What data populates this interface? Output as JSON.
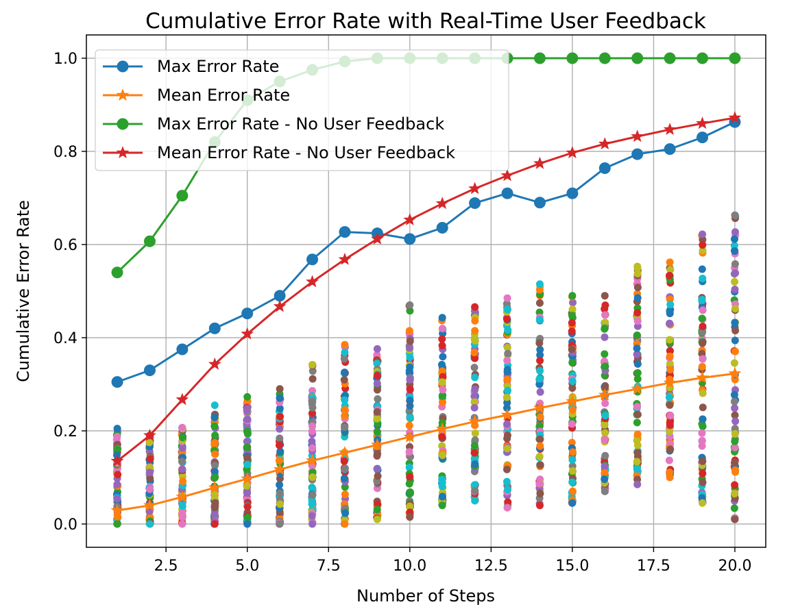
{
  "chart_data": {
    "type": "line",
    "title": "Cumulative Error Rate with Real-Time User Feedback",
    "xlabel": "Number of Steps",
    "ylabel": "Cumulative Error Rate",
    "xlim": [
      0.05,
      20.95
    ],
    "ylim": [
      -0.05,
      1.05
    ],
    "xticks": [
      2.5,
      5.0,
      7.5,
      10.0,
      12.5,
      15.0,
      17.5,
      20.0
    ],
    "yticks": [
      0.0,
      0.2,
      0.4,
      0.6,
      0.8,
      1.0
    ],
    "grid": true,
    "legend_position": "top-left",
    "x": [
      1,
      2,
      3,
      4,
      5,
      6,
      7,
      8,
      9,
      10,
      11,
      12,
      13,
      14,
      15,
      16,
      17,
      18,
      19,
      20
    ],
    "series": [
      {
        "name": "Max Error Rate",
        "marker": "circle",
        "color": "#1f77b4",
        "values": [
          0.305,
          0.33,
          0.375,
          0.42,
          0.452,
          0.49,
          0.568,
          0.627,
          0.624,
          0.612,
          0.636,
          0.689,
          0.71,
          0.69,
          0.71,
          0.764,
          0.794,
          0.805,
          0.83,
          0.863
        ]
      },
      {
        "name": "Mean Error Rate",
        "marker": "star",
        "color": "#ff7f0e",
        "values": [
          0.029,
          0.04,
          0.058,
          0.078,
          0.097,
          0.117,
          0.136,
          0.153,
          0.17,
          0.187,
          0.204,
          0.22,
          0.234,
          0.249,
          0.263,
          0.277,
          0.29,
          0.303,
          0.314,
          0.323
        ]
      },
      {
        "name": "Max Error Rate - No User Feedback",
        "marker": "circle",
        "color": "#2ca02c",
        "values": [
          0.54,
          0.607,
          0.705,
          0.82,
          0.91,
          0.95,
          0.975,
          0.993,
          1.0,
          1.0,
          1.0,
          1.0,
          1.0,
          1.0,
          1.0,
          1.0,
          1.0,
          1.0,
          1.0,
          1.0
        ]
      },
      {
        "name": "Mean Error Rate - No User Feedback",
        "marker": "star",
        "color": "#d62728",
        "values": [
          0.135,
          0.19,
          0.267,
          0.343,
          0.408,
          0.467,
          0.52,
          0.568,
          0.612,
          0.653,
          0.688,
          0.72,
          0.748,
          0.774,
          0.797,
          0.816,
          0.832,
          0.847,
          0.86,
          0.872
        ]
      }
    ],
    "scatter": {
      "colors": [
        "#1f77b4",
        "#ff7f0e",
        "#2ca02c",
        "#d62728",
        "#9467bd",
        "#8c564b",
        "#e377c2",
        "#7f7f7f",
        "#bcbd22",
        "#17becf"
      ],
      "ranges": [
        [
          0.0,
          0.205
        ],
        [
          0.0,
          0.19
        ],
        [
          0.0,
          0.207
        ],
        [
          0.0,
          0.255
        ],
        [
          0.0,
          0.273
        ],
        [
          0.0,
          0.29
        ],
        [
          0.0,
          0.342
        ],
        [
          0.0,
          0.385
        ],
        [
          0.01,
          0.376
        ],
        [
          0.015,
          0.47
        ],
        [
          0.04,
          0.443
        ],
        [
          0.05,
          0.466
        ],
        [
          0.035,
          0.485
        ],
        [
          0.04,
          0.515
        ],
        [
          0.045,
          0.49
        ],
        [
          0.07,
          0.49
        ],
        [
          0.085,
          0.553
        ],
        [
          0.1,
          0.562
        ],
        [
          0.045,
          0.622
        ],
        [
          0.01,
          0.663
        ]
      ]
    }
  }
}
